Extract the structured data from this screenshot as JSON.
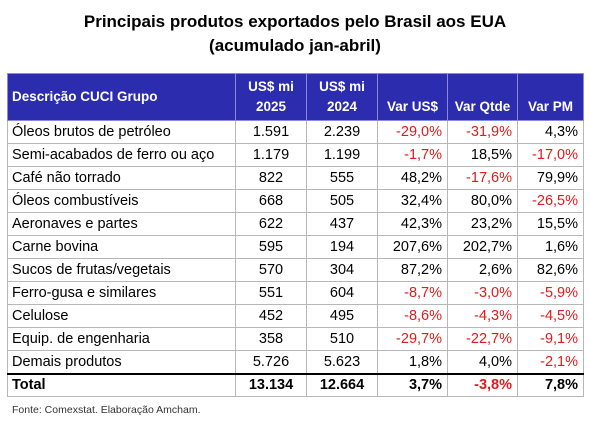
{
  "chart_data": {
    "type": "table",
    "title": "Principais produtos exportados pelo Brasil aos EUA",
    "subtitle": "(acumulado jan-abril)",
    "columns": [
      {
        "line1": "Descrição CUCI Grupo",
        "line2": ""
      },
      {
        "line1": "US$ mi",
        "line2": "2025"
      },
      {
        "line1": "US$ mi",
        "line2": "2024"
      },
      {
        "line1": "Var US$",
        "line2": ""
      },
      {
        "line1": "Var Qtde",
        "line2": ""
      },
      {
        "line1": "Var PM",
        "line2": ""
      }
    ],
    "rows": [
      {
        "desc": "Óleos brutos de petróleo",
        "v2025": "1.591",
        "v2024": "2.239",
        "var_usd": "-29,0%",
        "var_qtde": "-31,9%",
        "var_pm": "4,3%"
      },
      {
        "desc": "Semi-acabados de ferro ou aço",
        "v2025": "1.179",
        "v2024": "1.199",
        "var_usd": "-1,7%",
        "var_qtde": "18,5%",
        "var_pm": "-17,0%"
      },
      {
        "desc": "Café não torrado",
        "v2025": "822",
        "v2024": "555",
        "var_usd": "48,2%",
        "var_qtde": "-17,6%",
        "var_pm": "79,9%"
      },
      {
        "desc": "Óleos combustíveis",
        "v2025": "668",
        "v2024": "505",
        "var_usd": "32,4%",
        "var_qtde": "80,0%",
        "var_pm": "-26,5%"
      },
      {
        "desc": "Aeronaves e partes",
        "v2025": "622",
        "v2024": "437",
        "var_usd": "42,3%",
        "var_qtde": "23,2%",
        "var_pm": "15,5%"
      },
      {
        "desc": "Carne bovina",
        "v2025": "595",
        "v2024": "194",
        "var_usd": "207,6%",
        "var_qtde": "202,7%",
        "var_pm": "1,6%"
      },
      {
        "desc": "Sucos de frutas/vegetais",
        "v2025": "570",
        "v2024": "304",
        "var_usd": "87,2%",
        "var_qtde": "2,6%",
        "var_pm": "82,6%"
      },
      {
        "desc": "Ferro-gusa e similares",
        "v2025": "551",
        "v2024": "604",
        "var_usd": "-8,7%",
        "var_qtde": "-3,0%",
        "var_pm": "-5,9%"
      },
      {
        "desc": "Celulose",
        "v2025": "452",
        "v2024": "495",
        "var_usd": "-8,6%",
        "var_qtde": "-4,3%",
        "var_pm": "-4,5%"
      },
      {
        "desc": "Equip. de engenharia",
        "v2025": "358",
        "v2024": "510",
        "var_usd": "-29,7%",
        "var_qtde": "-22,7%",
        "var_pm": "-9,1%"
      },
      {
        "desc": "Demais produtos",
        "v2025": "5.726",
        "v2024": "5.623",
        "var_usd": "1,8%",
        "var_qtde": "4,0%",
        "var_pm": "-2,1%"
      }
    ],
    "total": {
      "desc": "Total",
      "v2025": "13.134",
      "v2024": "12.664",
      "var_usd": "3,7%",
      "var_qtde": "-3,8%",
      "var_pm": "7,8%"
    }
  },
  "source": "Fonte: Comexstat. Elaboração Amcham.",
  "colors": {
    "header_bg": "#2c2caf",
    "header_text": "#ffffff",
    "negative": "#e01b1b"
  }
}
